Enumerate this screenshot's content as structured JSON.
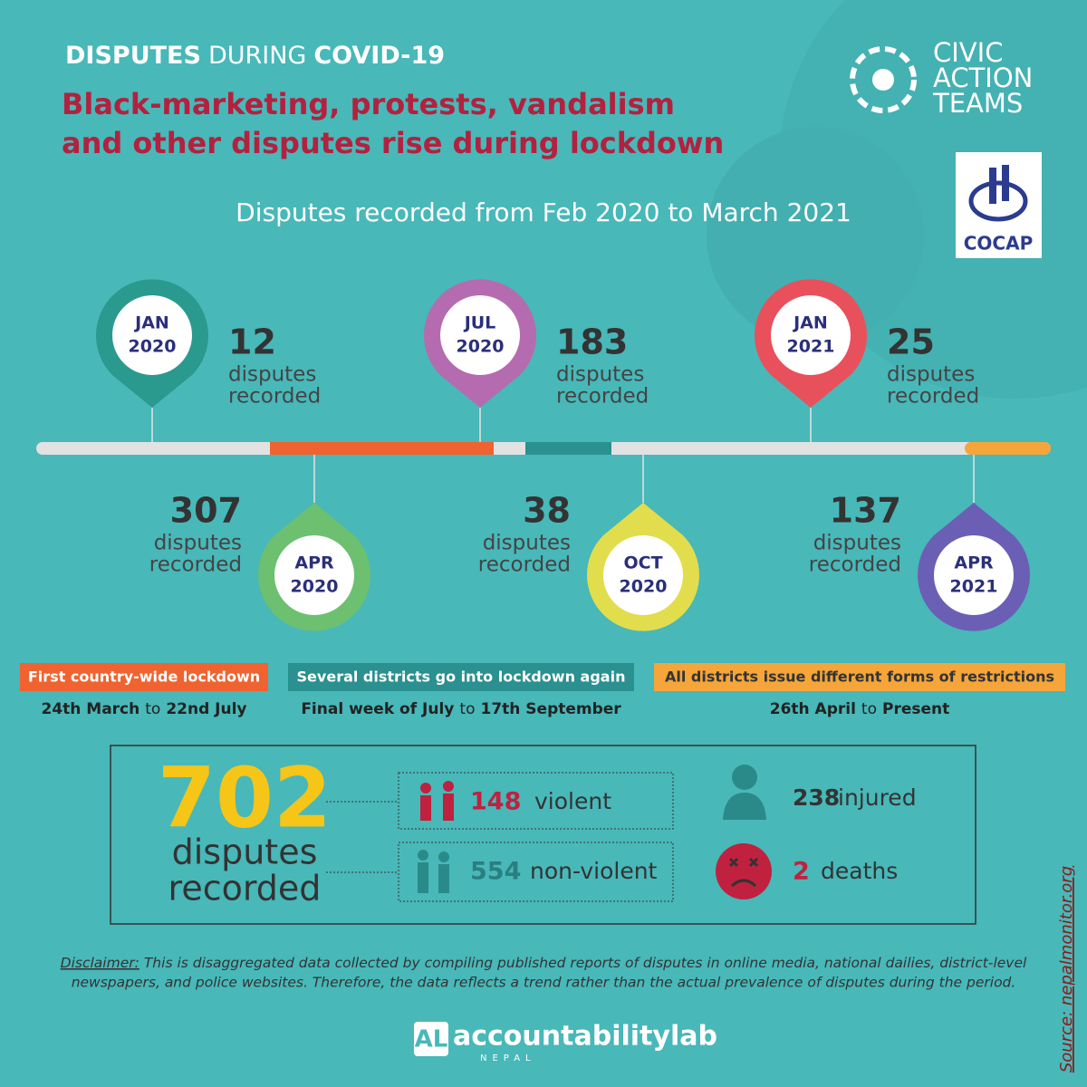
{
  "header": {
    "title": {
      "part1": "DISPUTES",
      "part2": "DURING",
      "part3": "COVID-19"
    },
    "subtitle": [
      "Black-marketing, protests, vandalism",
      "and other disputes rise during lockdown"
    ],
    "range": "Disputes recorded from Feb 2020 to March 2021"
  },
  "logos": {
    "cat": [
      "CIVIC",
      "ACTION",
      "TEAMS"
    ],
    "cocap": "COCAP"
  },
  "timeline": [
    {
      "month": "JAN",
      "year": "2020",
      "count": 12,
      "label": [
        "disputes",
        "recorded"
      ]
    },
    {
      "month": "APR",
      "year": "2020",
      "count": 307,
      "label": [
        "disputes",
        "recorded"
      ]
    },
    {
      "month": "JUL",
      "year": "2020",
      "count": 183,
      "label": [
        "disputes",
        "recorded"
      ]
    },
    {
      "month": "OCT",
      "year": "2020",
      "count": 38,
      "label": [
        "disputes",
        "recorded"
      ]
    },
    {
      "month": "JAN",
      "year": "2021",
      "count": 25,
      "label": [
        "disputes",
        "recorded"
      ]
    },
    {
      "month": "APR",
      "year": "2021",
      "count": 137,
      "label": [
        "disputes",
        "recorded"
      ]
    }
  ],
  "periods": [
    {
      "name": "First country-wide lockdown",
      "start": "24th March",
      "joiner": "to",
      "end": "22nd July"
    },
    {
      "name": "Several districts go into lockdown again",
      "start": "Final week of July",
      "joiner": "to",
      "end": "17th September"
    },
    {
      "name": "All districts issue different forms of restrictions",
      "start": "26th April",
      "joiner": "to",
      "end": "Present"
    }
  ],
  "summary": {
    "total": 702,
    "total_label": [
      "disputes",
      "recorded"
    ],
    "violent": {
      "count": 148,
      "label": "violent"
    },
    "non_violent": {
      "count": 554,
      "label": "non-violent"
    },
    "injured": {
      "count": 238,
      "label": "injured"
    },
    "deaths": {
      "count": 2,
      "label": "deaths"
    }
  },
  "disclaimer": {
    "lead": "Disclaimer:",
    "lines": [
      "This is disaggregated data collected by compiling published reports of disputes in online media, national dailies, district-level",
      "newspapers, and police websites. Therefore, the data reflects a trend rather than the actual prevalence of disputes during the period."
    ]
  },
  "source": "Source: nepalmonitor.org",
  "footer": {
    "brand": "accountabilitylab",
    "country": "NEPAL"
  }
}
